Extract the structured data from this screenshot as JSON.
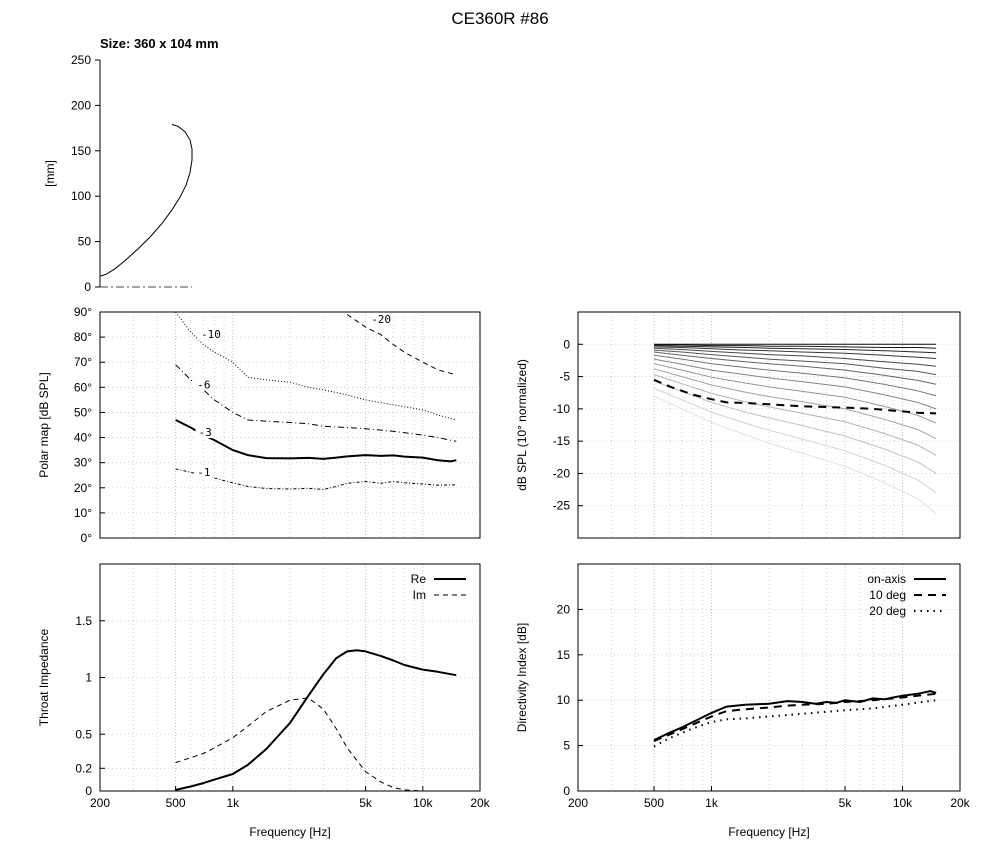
{
  "figure": {
    "title": "CE360R #86"
  },
  "chart_data": [
    {
      "id": "profile",
      "type": "line",
      "title": "Size: 360 x 104 mm",
      "xlabel": "",
      "ylabel": "[mm]",
      "ylim": [
        0,
        250
      ],
      "yticks": [
        "0",
        "50",
        "100",
        "150",
        "200",
        "250"
      ],
      "grid": false,
      "series": [
        {
          "style": "solid",
          "points": [
            [
              0,
              12
            ],
            [
              6,
              14
            ],
            [
              15,
              20
            ],
            [
              26,
              30
            ],
            [
              38,
              42
            ],
            [
              50,
              55
            ],
            [
              62,
              70
            ],
            [
              72,
              85
            ],
            [
              80,
              99
            ],
            [
              86,
              112
            ],
            [
              90,
              126
            ],
            [
              92,
              140
            ],
            [
              92,
              152
            ],
            [
              90,
              162
            ],
            [
              85,
              171
            ],
            [
              78,
              177
            ],
            [
              72,
              179
            ]
          ]
        },
        {
          "style": "dashdot",
          "points": [
            [
              0,
              0
            ],
            [
              92,
              0
            ]
          ]
        }
      ]
    },
    {
      "id": "polar-map",
      "type": "line",
      "xlabel": "",
      "ylabel": "Polar map [dB SPL]",
      "xscale": "log",
      "xlim": [
        200,
        20000
      ],
      "ylim": [
        0,
        90
      ],
      "yticks": [
        "0°",
        "10°",
        "20°",
        "30°",
        "40°",
        "50°",
        "60°",
        "70°",
        "80°",
        "90°"
      ],
      "grid": true,
      "series": [
        {
          "label": "-1",
          "style": "dashdot-fine",
          "x": [
            500,
            700,
            1000,
            1200,
            1500,
            2000,
            2500,
            3000,
            3500,
            4000,
            5000,
            6000,
            7000,
            8000,
            10000,
            12000,
            15000
          ],
          "y": [
            27.5,
            25,
            22,
            20.5,
            19.7,
            19.5,
            19.8,
            19.3,
            20.5,
            21.8,
            22.5,
            21.8,
            22.5,
            22,
            21.5,
            21,
            21.2
          ]
        },
        {
          "label": "-3",
          "style": "solid-thick",
          "x": [
            500,
            600,
            700,
            800,
            1000,
            1200,
            1500,
            2000,
            2500,
            3000,
            3500,
            4000,
            5000,
            6000,
            7000,
            8000,
            10000,
            12000,
            14000,
            15000
          ],
          "y": [
            47,
            44,
            41,
            39,
            35,
            33,
            31.8,
            31.7,
            31.9,
            31.5,
            32,
            32.5,
            33,
            32.7,
            32.9,
            32.4,
            32,
            31,
            30.5,
            31
          ]
        },
        {
          "label": "-6",
          "style": "dashdot",
          "x": [
            500,
            600,
            700,
            800,
            1000,
            1200,
            1500,
            2000,
            2500,
            3000,
            4000,
            5000,
            7000,
            10000,
            12000,
            15000
          ],
          "y": [
            69,
            63,
            59,
            55,
            50,
            47,
            46.5,
            46,
            45.5,
            44.5,
            44,
            43.5,
            42.5,
            41,
            40,
            38.5
          ]
        },
        {
          "label": "-10",
          "style": "dotted",
          "x": [
            500,
            600,
            700,
            800,
            1000,
            1200,
            1500,
            2000,
            2500,
            3000,
            4000,
            5000,
            7000,
            10000,
            12000,
            15000
          ],
          "y": [
            90,
            82,
            77,
            74,
            70,
            64,
            63,
            62,
            60,
            59,
            57,
            55,
            53,
            51,
            49,
            47
          ]
        },
        {
          "label": "-20",
          "style": "dashed",
          "x": [
            4000,
            5000,
            6000,
            7000,
            8000,
            10000,
            12000,
            15000
          ],
          "y": [
            89,
            84,
            81,
            77,
            74,
            70,
            67,
            65
          ]
        }
      ],
      "label_positions": [
        {
          "label": "-1",
          "x": 650,
          "y": 25
        },
        {
          "label": "-3",
          "x": 660,
          "y": 41
        },
        {
          "label": "-6",
          "x": 650,
          "y": 60
        },
        {
          "label": "-10",
          "x": 680,
          "y": 80
        },
        {
          "label": "-20",
          "x": 5350,
          "y": 86
        }
      ]
    },
    {
      "id": "normalized-spl",
      "type": "line",
      "xlabel": "",
      "ylabel": "dB SPL (10° normalized)",
      "xscale": "log",
      "xlim": [
        200,
        20000
      ],
      "ylim": [
        -30,
        5
      ],
      "yticks": [
        "-25",
        "-20",
        "-15",
        "-10",
        "-5",
        "0"
      ],
      "grid": true,
      "note": "family of off-axis curves in grey shades; dashed curve is the highlighted reference",
      "x": [
        500,
        700,
        1000,
        1500,
        2000,
        3000,
        5000,
        8000,
        12000,
        15000
      ],
      "curves": [
        [
          0,
          0,
          0,
          0,
          0,
          0,
          0,
          0,
          0,
          0
        ],
        [
          -0.1,
          -0.1,
          -0.2,
          -0.2,
          -0.3,
          -0.3,
          -0.4,
          -0.5,
          -0.5,
          -0.6
        ],
        [
          -0.2,
          -0.3,
          -0.4,
          -0.5,
          -0.6,
          -0.7,
          -0.8,
          -1,
          -1.2,
          -1.3
        ],
        [
          -0.4,
          -0.5,
          -0.7,
          -0.9,
          -1,
          -1.2,
          -1.4,
          -1.7,
          -2,
          -2.2
        ],
        [
          -0.6,
          -0.8,
          -1.1,
          -1.4,
          -1.6,
          -1.8,
          -2.2,
          -2.7,
          -3.1,
          -3.4
        ],
        [
          -0.9,
          -1.2,
          -1.6,
          -2,
          -2.3,
          -2.6,
          -3,
          -3.7,
          -4.2,
          -4.7
        ],
        [
          -1.2,
          -1.7,
          -2.2,
          -2.7,
          -3,
          -3.4,
          -4,
          -4.8,
          -5.6,
          -6.2
        ],
        [
          -1.7,
          -2.3,
          -3,
          -3.6,
          -4,
          -4.5,
          -5.2,
          -6.2,
          -7.2,
          -8
        ],
        [
          -2.3,
          -3.1,
          -4,
          -4.7,
          -5.2,
          -5.8,
          -6.6,
          -7.8,
          -9,
          -10
        ],
        [
          -3,
          -4,
          -5.1,
          -6,
          -6.6,
          -7.3,
          -8.2,
          -9.6,
          -11,
          -12.2
        ],
        [
          -3.8,
          -5,
          -6.3,
          -7.4,
          -8.1,
          -8.9,
          -10,
          -11.6,
          -13.2,
          -14.6
        ],
        [
          -4.7,
          -6.1,
          -7.6,
          -8.9,
          -9.7,
          -10.7,
          -12,
          -13.8,
          -15.6,
          -17.2
        ],
        [
          -5.7,
          -7.3,
          -9,
          -10.5,
          -11.4,
          -12.6,
          -14.2,
          -16.2,
          -18.2,
          -20
        ],
        [
          -6.8,
          -8.6,
          -10.5,
          -12.2,
          -13.3,
          -14.7,
          -16.5,
          -18.7,
          -21,
          -23
        ],
        [
          -8,
          -10,
          -12.1,
          -14,
          -15.3,
          -16.9,
          -18.9,
          -21.4,
          -23.9,
          -26.2
        ]
      ],
      "highlight": {
        "style": "dashed",
        "x": [
          500,
          600,
          700,
          800,
          1000,
          1200,
          1500,
          2000,
          3000,
          5000,
          7000,
          10000,
          12000,
          15000
        ],
        "y": [
          -5.5,
          -6.5,
          -7.2,
          -7.8,
          -8.5,
          -9,
          -9.1,
          -9.3,
          -9.6,
          -9.8,
          -10,
          -10.4,
          -10.6,
          -10.7
        ]
      }
    },
    {
      "id": "throat-impedance",
      "type": "line",
      "xlabel": "Frequency [Hz]",
      "ylabel": "Throat Impedance",
      "xscale": "log",
      "xlim": [
        200,
        20000
      ],
      "ylim": [
        0,
        2
      ],
      "xticks": [
        "200",
        "500",
        "1k",
        "5k",
        "10k",
        "20k"
      ],
      "yticks": [
        "0",
        "0.2",
        "0.5",
        "1",
        "1.5"
      ],
      "grid": true,
      "legend_position": "top-right",
      "series": [
        {
          "name": "Re",
          "style": "solid",
          "x": [
            500,
            600,
            700,
            800,
            1000,
            1200,
            1500,
            2000,
            2500,
            3000,
            3500,
            4000,
            4500,
            5000,
            6000,
            7000,
            8000,
            10000,
            12000,
            15000
          ],
          "y": [
            0.01,
            0.04,
            0.07,
            0.1,
            0.15,
            0.23,
            0.37,
            0.6,
            0.84,
            1.03,
            1.17,
            1.23,
            1.24,
            1.23,
            1.19,
            1.15,
            1.11,
            1.07,
            1.05,
            1.02
          ]
        },
        {
          "name": "Im",
          "style": "dashed",
          "x": [
            500,
            700,
            800,
            1000,
            1200,
            1500,
            2000,
            2500,
            3000,
            3500,
            4000,
            5000,
            6000,
            7000,
            8000,
            10000,
            12000
          ],
          "y": [
            0.25,
            0.33,
            0.38,
            0.47,
            0.57,
            0.7,
            0.8,
            0.82,
            0.72,
            0.55,
            0.38,
            0.17,
            0.08,
            0.03,
            0.01,
            0,
            0
          ]
        }
      ]
    },
    {
      "id": "directivity-index",
      "type": "line",
      "xlabel": "Frequency [Hz]",
      "ylabel": "Directivity Index [dB]",
      "xscale": "log",
      "xlim": [
        200,
        20000
      ],
      "ylim": [
        0,
        25
      ],
      "xticks": [
        "200",
        "500",
        "1k",
        "5k",
        "10k",
        "20k"
      ],
      "yticks": [
        "0",
        "5",
        "10",
        "15",
        "20"
      ],
      "grid": true,
      "legend_position": "top-right",
      "series": [
        {
          "name": "on-axis",
          "style": "solid",
          "x": [
            500,
            600,
            700,
            800,
            1000,
            1200,
            1500,
            2000,
            2500,
            3000,
            3500,
            4000,
            4500,
            5000,
            6000,
            7000,
            8000,
            10000,
            12000,
            14000,
            15000
          ],
          "y": [
            5.6,
            6.4,
            7,
            7.6,
            8.6,
            9.3,
            9.5,
            9.6,
            9.9,
            9.8,
            9.6,
            9.8,
            9.7,
            10,
            9.8,
            10.2,
            10.1,
            10.5,
            10.7,
            11,
            10.8
          ]
        },
        {
          "name": "10 deg",
          "style": "dashed",
          "x": [
            500,
            700,
            1000,
            1200,
            1500,
            2000,
            2500,
            3000,
            4000,
            5000,
            6000,
            7000,
            8000,
            10000,
            12000,
            15000
          ],
          "y": [
            5.5,
            6.8,
            8.2,
            8.8,
            9,
            9.2,
            9.4,
            9.5,
            9.6,
            9.8,
            9.9,
            10,
            10.1,
            10.3,
            10.5,
            10.7
          ]
        },
        {
          "name": "20 deg",
          "style": "dotted",
          "x": [
            500,
            600,
            700,
            800,
            1000,
            1200,
            1500,
            2000,
            3000,
            5000,
            7000,
            10000,
            15000
          ],
          "y": [
            4.9,
            5.8,
            6.4,
            6.9,
            7.6,
            7.9,
            8,
            8.2,
            8.5,
            8.9,
            9.1,
            9.5,
            10
          ]
        }
      ]
    }
  ]
}
